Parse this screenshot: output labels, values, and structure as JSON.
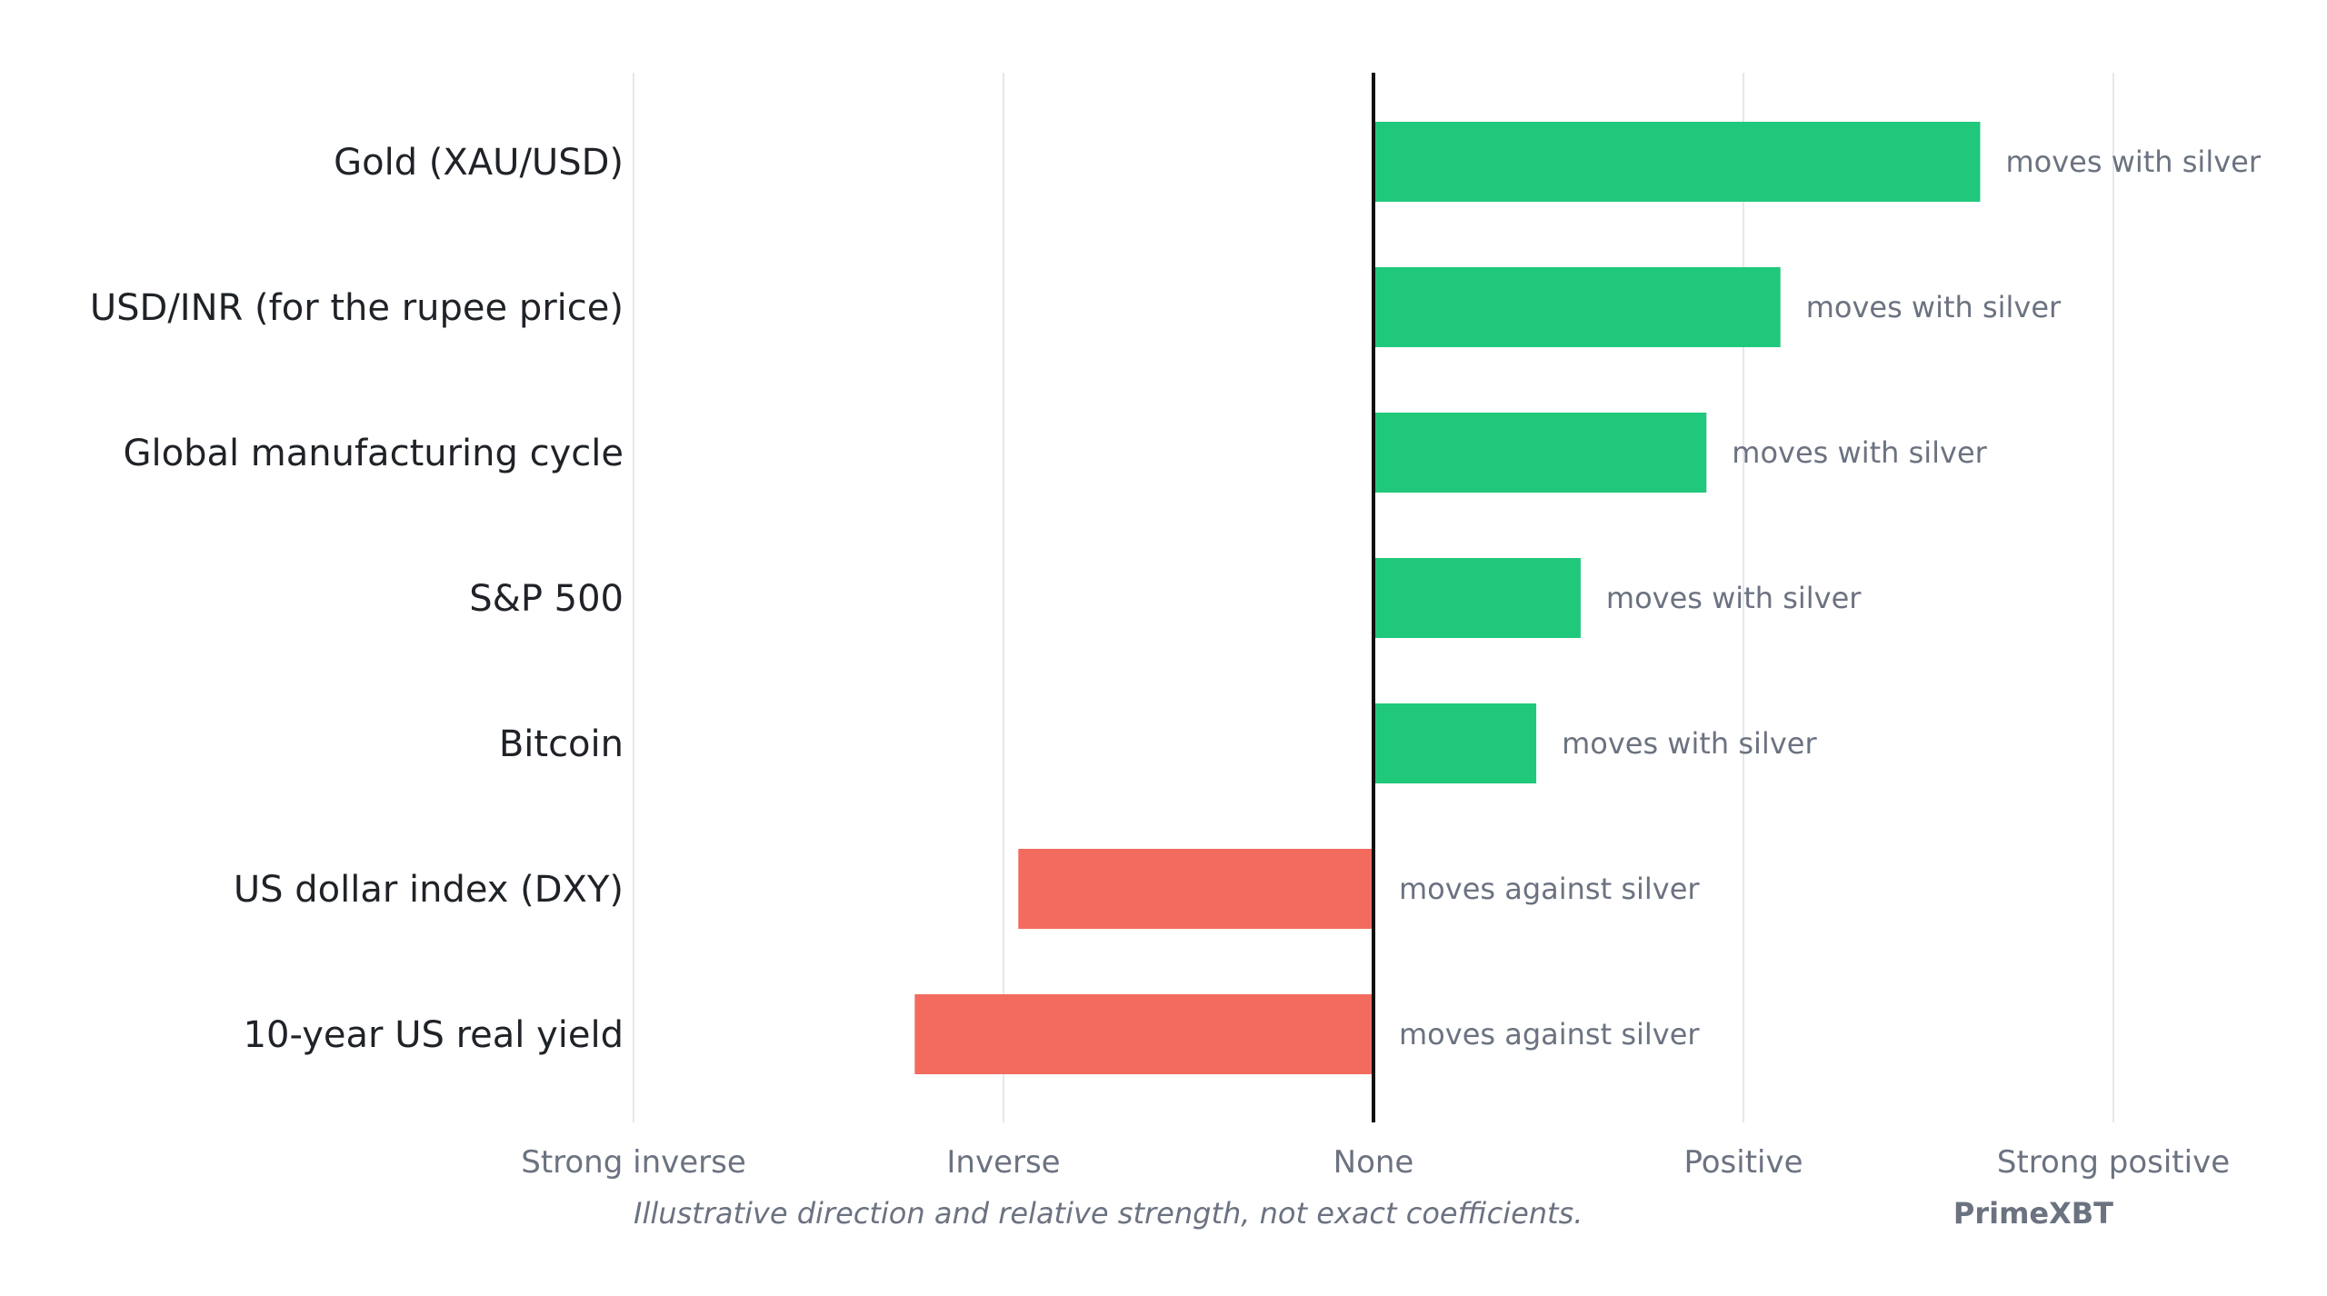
{
  "chart_data": {
    "type": "bar",
    "orientation": "horizontal",
    "categories": [
      "Gold (XAU/USD)",
      "USD/INR (for the rupee price)",
      "Global manufacturing cycle",
      "S&P 500",
      "Bitcoin",
      "US dollar index (DXY)",
      "10-year US real yield"
    ],
    "values": [
      0.82,
      0.55,
      0.45,
      0.28,
      0.22,
      -0.48,
      -0.62
    ],
    "data_labels": [
      "moves with silver",
      "moves with silver",
      "moves with silver",
      "moves with silver",
      "moves with silver",
      "moves against silver",
      "moves against silver"
    ],
    "xlim": [
      -1,
      1
    ],
    "x_ticks": [
      -1,
      -0.5,
      0,
      0.5,
      1
    ],
    "x_tick_labels": [
      "Strong inverse",
      "Inverse",
      "None",
      "Positive",
      "Strong positive"
    ],
    "grid": true,
    "colors": {
      "positive": "#20c87b",
      "negative": "#f26b5e"
    },
    "footnote": "Illustrative direction and relative strength, not exact coefficients.",
    "brand": "PrimeXBT"
  }
}
